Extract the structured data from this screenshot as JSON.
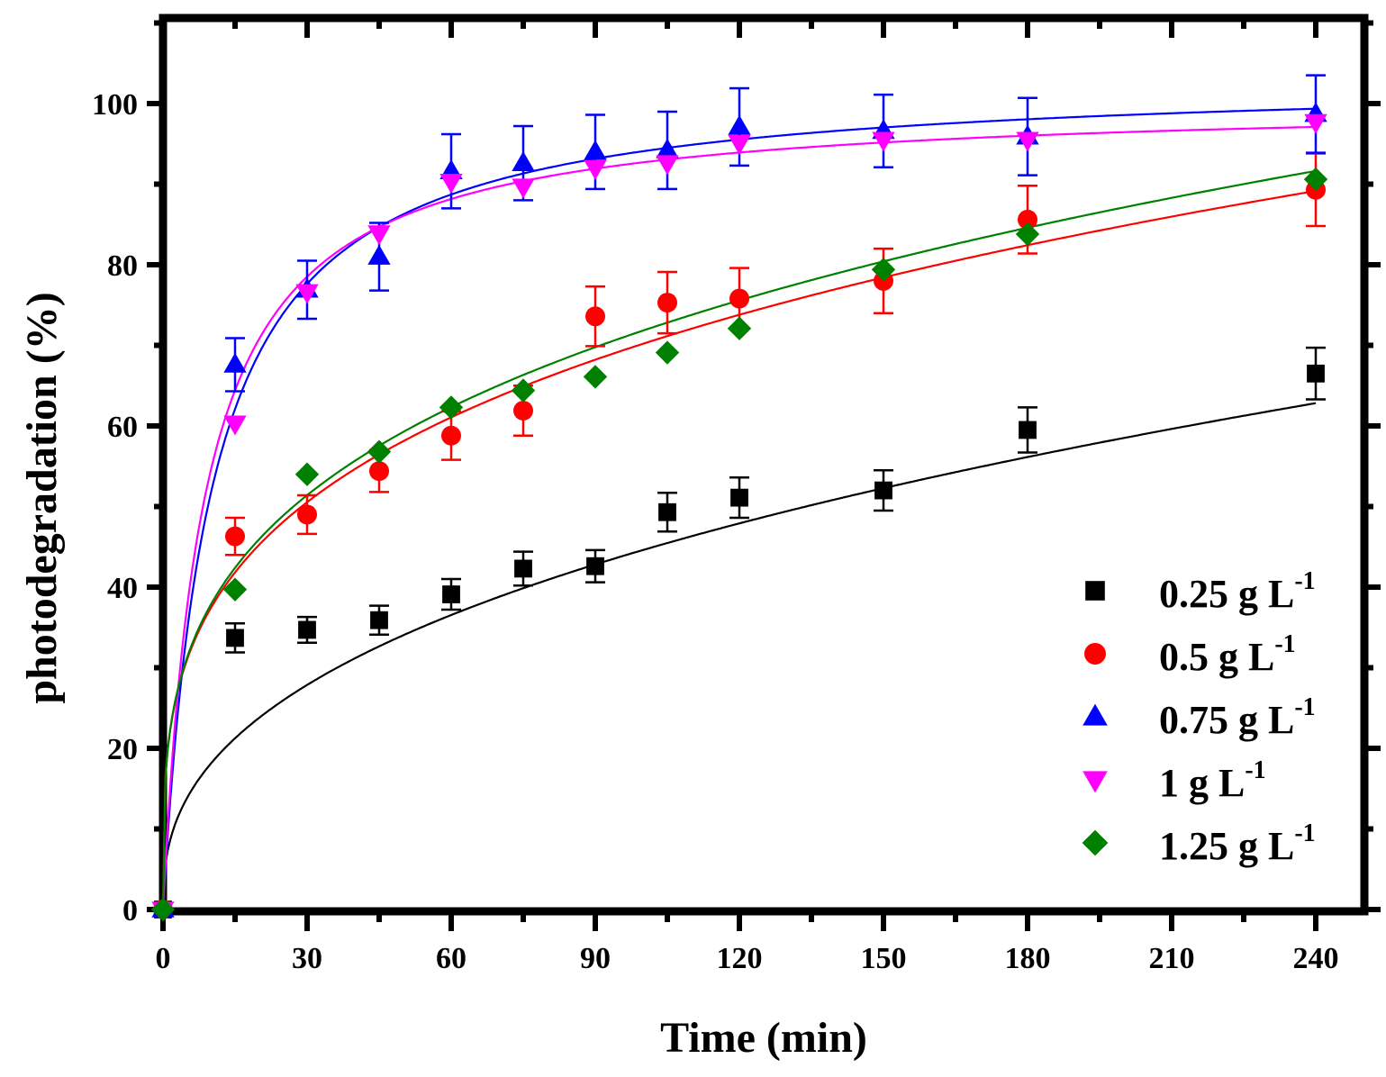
{
  "chart_data": {
    "type": "scatter",
    "xlabel": "Time (min)",
    "ylabel": "photodegradation (%)",
    "xlim": [
      0,
      250
    ],
    "ylim": [
      0,
      110
    ],
    "xticks": [
      0,
      30,
      60,
      90,
      120,
      150,
      180,
      210,
      240
    ],
    "yticks": [
      0,
      20,
      40,
      60,
      80,
      100
    ],
    "grid": false,
    "legend_position": "bottom-right",
    "legend_unit": "g L",
    "legend_sup": "-1",
    "series": [
      {
        "name": "0.25",
        "legend_spacing": "",
        "color": "#000000",
        "marker": "square",
        "x": [
          0,
          15,
          30,
          45,
          60,
          75,
          90,
          105,
          120,
          150,
          180,
          240
        ],
        "y": [
          0,
          33.7,
          34.7,
          35.9,
          39.1,
          42.3,
          42.6,
          49.3,
          51.1,
          52.0,
          59.5,
          66.5
        ],
        "err": [
          0,
          1.8,
          1.6,
          1.8,
          1.9,
          2.1,
          2.0,
          2.4,
          2.5,
          2.5,
          2.8,
          3.2
        ],
        "fit": {
          "a": 7.37,
          "b": 0.391
        }
      },
      {
        "name": "0.5",
        "legend_spacing": "  ",
        "color": "#ff0000",
        "marker": "circle",
        "x": [
          0,
          15,
          30,
          45,
          60,
          75,
          90,
          105,
          120,
          150,
          180,
          240
        ],
        "y": [
          0,
          46.3,
          49.0,
          54.4,
          58.8,
          61.9,
          73.6,
          75.3,
          75.8,
          78.0,
          85.6,
          89.3
        ],
        "err": [
          0,
          2.3,
          2.4,
          2.6,
          3.0,
          3.1,
          3.7,
          3.8,
          3.8,
          4.0,
          4.2,
          4.5
        ],
        "fit": {
          "a": 19.97,
          "b": 0.273
        }
      },
      {
        "name": "0.75",
        "legend_spacing": "",
        "color": "#0000ff",
        "marker": "triangle-up",
        "x": [
          0,
          15,
          30,
          45,
          60,
          75,
          90,
          105,
          120,
          150,
          180,
          240
        ],
        "y": [
          0,
          67.6,
          76.9,
          81.0,
          91.6,
          92.6,
          94.0,
          94.2,
          97.1,
          96.6,
          95.9,
          98.7
        ],
        "err": [
          0,
          3.3,
          3.6,
          4.2,
          4.6,
          4.6,
          4.6,
          4.8,
          4.8,
          4.5,
          4.8,
          4.8
        ],
        "fit": {
          "a": 103.5,
          "b": 10.0
        }
      },
      {
        "name": "1",
        "legend_spacing": "     ",
        "color": "#ff00ff",
        "marker": "triangle-down",
        "x": [
          0,
          15,
          30,
          45,
          60,
          75,
          90,
          105,
          120,
          150,
          180,
          240
        ],
        "y": [
          0,
          60.3,
          76.6,
          83.9,
          90.3,
          89.7,
          92.0,
          92.6,
          95.1,
          95.5,
          95.5,
          97.7
        ],
        "err": [
          0,
          0,
          0,
          0,
          0,
          0,
          0,
          0,
          0,
          0,
          0,
          0
        ],
        "fit": {
          "a": 100.5,
          "b": 8.4
        }
      },
      {
        "name": "1.25",
        "legend_spacing": "",
        "color": "#008000",
        "marker": "diamond",
        "x": [
          0,
          15,
          30,
          45,
          60,
          75,
          90,
          105,
          120,
          150,
          180,
          240
        ],
        "y": [
          0,
          39.7,
          54.0,
          56.8,
          62.3,
          64.4,
          66.1,
          69.1,
          72.1,
          79.4,
          83.8,
          90.6
        ],
        "err": [
          0,
          0,
          0,
          0,
          0,
          0,
          0,
          0,
          0,
          0,
          0,
          0
        ],
        "fit": {
          "a": 19.97,
          "b": 0.278
        }
      }
    ]
  }
}
